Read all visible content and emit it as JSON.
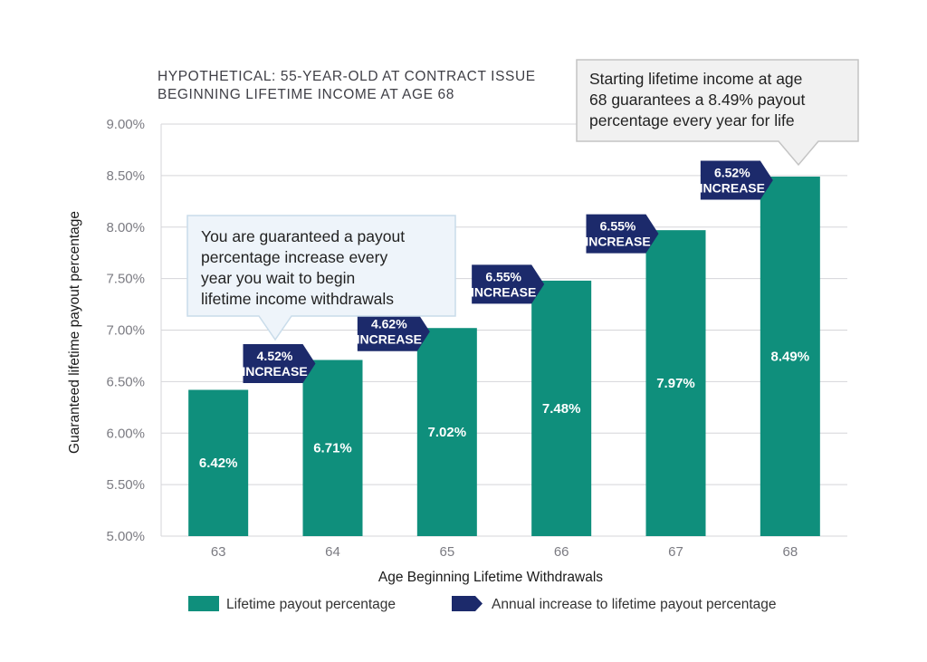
{
  "chart_data": {
    "type": "bar",
    "title_lines": [
      "HYPOTHETICAL: 55-YEAR-OLD AT CONTRACT ISSUE",
      "BEGINNING LIFETIME INCOME AT AGE 68"
    ],
    "categories": [
      "63",
      "64",
      "65",
      "66",
      "67",
      "68"
    ],
    "series": [
      {
        "name": "Lifetime payout percentage",
        "values": [
          6.42,
          6.71,
          7.02,
          7.48,
          7.97,
          8.49
        ],
        "labels": [
          "6.42%",
          "6.71%",
          "7.02%",
          "7.48%",
          "7.97%",
          "8.49%"
        ]
      }
    ],
    "increases": [
      {
        "value": "4.52%",
        "word": "INCREASE"
      },
      {
        "value": "4.62%",
        "word": "INCREASE"
      },
      {
        "value": "6.55%",
        "word": "INCREASE"
      },
      {
        "value": "6.55%",
        "word": "INCREASE"
      },
      {
        "value": "6.52%",
        "word": "INCREASE"
      }
    ],
    "ylim": [
      5.0,
      9.0
    ],
    "yticks": [
      5.0,
      5.5,
      6.0,
      6.5,
      7.0,
      7.5,
      8.0,
      8.5,
      9.0
    ],
    "ytick_labels": [
      "5.00%",
      "5.50%",
      "6.00%",
      "6.50%",
      "7.00%",
      "7.50%",
      "8.00%",
      "8.50%",
      "9.00%"
    ],
    "xlabel": "Age Beginning Lifetime Withdrawals",
    "ylabel": "Guaranteed lifetime payout percentage",
    "grid": true,
    "legend": [
      {
        "label": "Lifetime payout percentage",
        "shape": "square"
      },
      {
        "label": "Annual increase to lifetime payout percentage",
        "shape": "arrow"
      }
    ],
    "callouts": [
      {
        "lines": [
          "You are guaranteed a payout",
          "percentage increase every",
          "year you wait to begin",
          "lifetime income withdrawals"
        ]
      },
      {
        "lines": [
          "Starting lifetime income at age",
          "68 guarantees a 8.49% payout",
          "percentage every year for life"
        ]
      }
    ]
  },
  "colors": {
    "bar": "#0f8f7c",
    "increase": "#1c2a6b",
    "grid": "#d5d5d9",
    "callout_fill": "#eef4fa",
    "callout_stroke": "#c9dcea",
    "callout2_fill": "#f1f1f1",
    "callout2_stroke": "#c4c4c4"
  }
}
